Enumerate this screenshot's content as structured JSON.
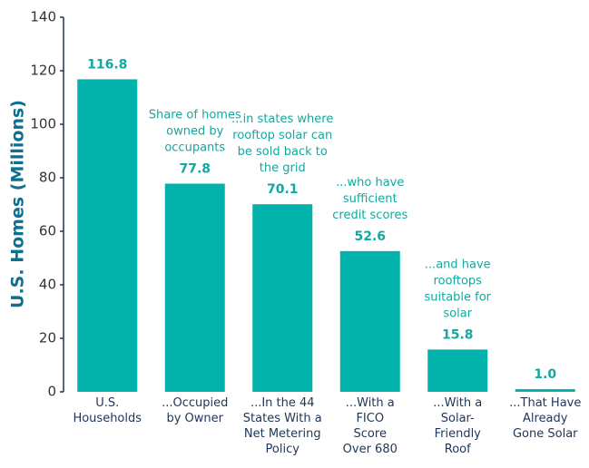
{
  "chart_data": {
    "type": "bar",
    "ylabel": "U.S. Homes (Millions)",
    "categories": [
      [
        "U.S.",
        "Households"
      ],
      [
        "...Occupied",
        "by Owner"
      ],
      [
        "...In the 44",
        "States With a",
        "Net Metering",
        "Policy"
      ],
      [
        "...With a",
        "FICO",
        "Score",
        "Over 680"
      ],
      [
        "...With a",
        "Solar-",
        "Friendly",
        "Roof"
      ],
      [
        "...That Have",
        "Already",
        "Gone Solar"
      ]
    ],
    "values": [
      116.8,
      77.8,
      70.1,
      52.6,
      15.8,
      1.0
    ],
    "value_labels": [
      "116.8",
      "77.8",
      "70.1",
      "52.6",
      "15.8",
      "1.0"
    ],
    "annotations": [
      [
        "Share of homes",
        "owned by",
        "occupants"
      ],
      [
        "...in states where",
        "rooftop solar can",
        "be sold back to",
        "the grid"
      ],
      [
        "...who have",
        "sufficient",
        "credit scores"
      ],
      [
        "...and have",
        "rooftops",
        "suitable for",
        "solar"
      ]
    ],
    "color": "#00b2a9",
    "ylim": [
      0,
      140
    ],
    "yticks": [
      0,
      20,
      40,
      60,
      80,
      100,
      120,
      140
    ],
    "grid": false
  }
}
